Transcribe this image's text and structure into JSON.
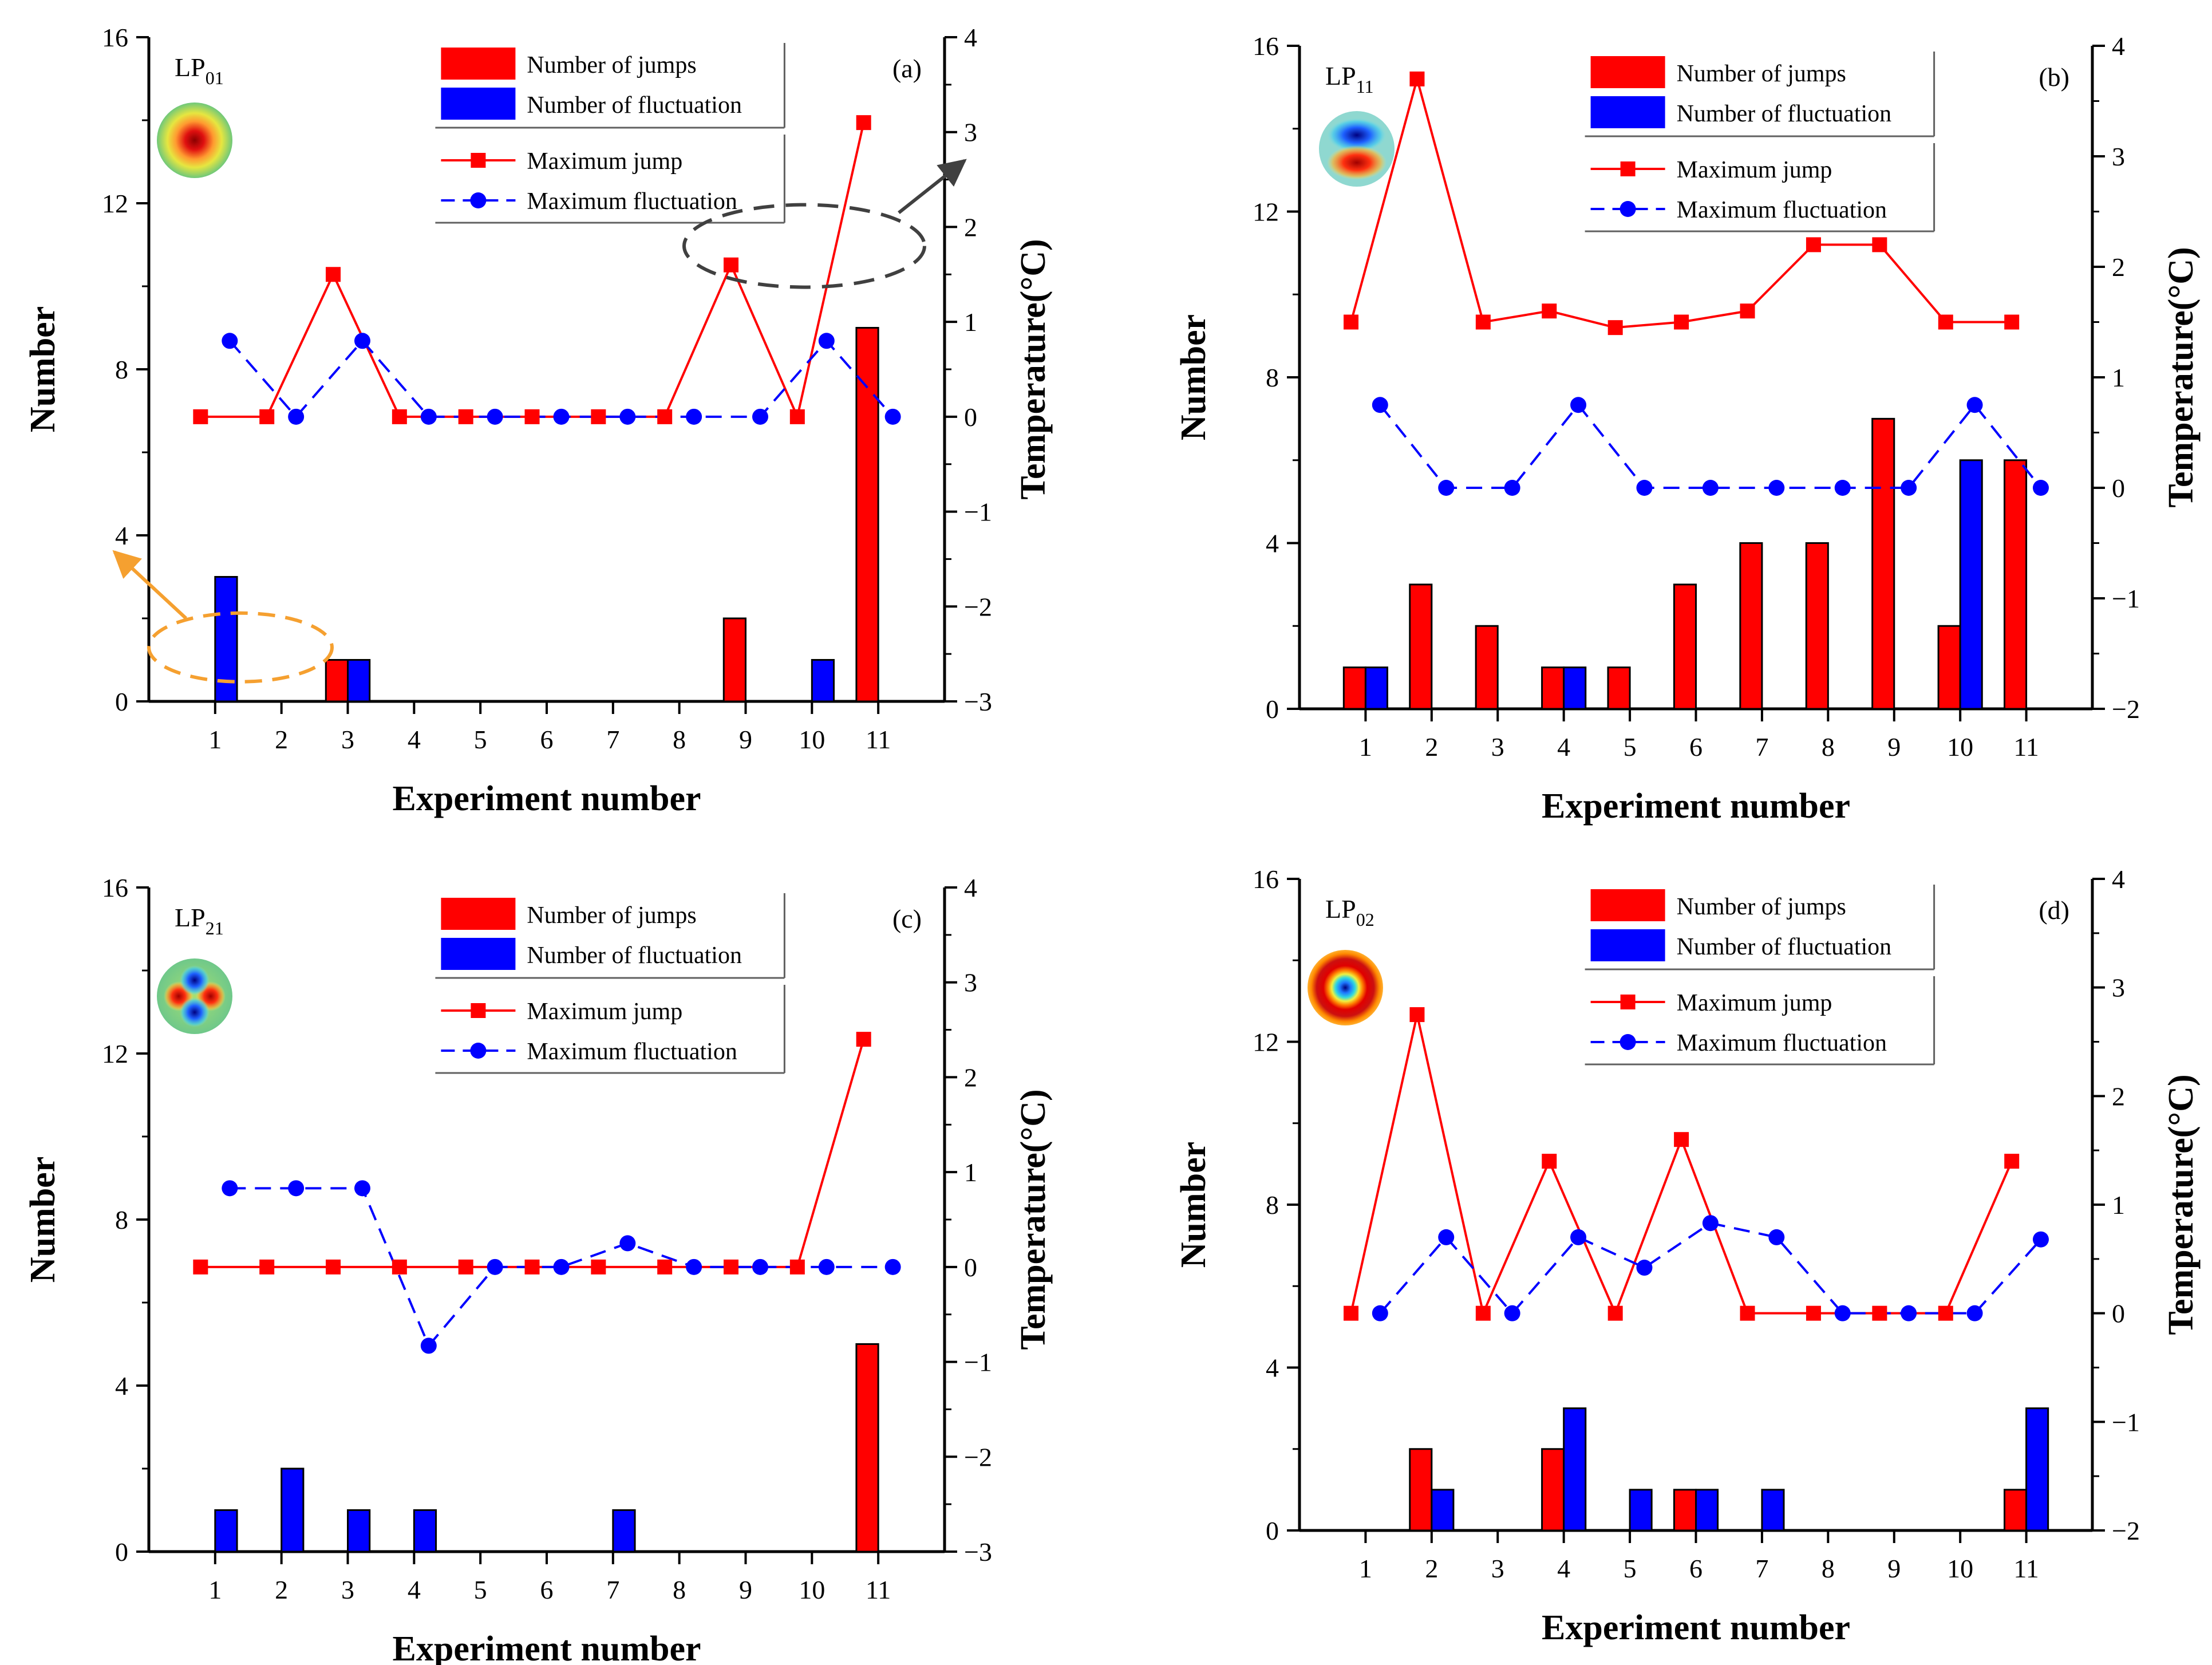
{
  "colors": {
    "jumps": "#ff0000",
    "fluctuation": "#0000ff",
    "axis": "#000000",
    "annotation_gray": "#404040",
    "annotation_orange": "#f5a030"
  },
  "icons": [
    "lp01-mode-profile",
    "lp11-mode-profile",
    "lp21-mode-profile",
    "lp02-mode-profile"
  ],
  "chart_data": [
    {
      "type": "bar",
      "panel": "(a)",
      "mode": "LP",
      "mode_sub": "01",
      "mode_profile": "lp01",
      "xlabel": "Experiment number",
      "ylabel": "Number",
      "y2label": "Temperature(°C)",
      "categories": [
        "1",
        "2",
        "3",
        "4",
        "5",
        "6",
        "7",
        "8",
        "9",
        "10",
        "11"
      ],
      "ylim": [
        0,
        16
      ],
      "yticks": [
        "0",
        "4",
        "8",
        "12",
        "16"
      ],
      "y2lim": [
        -3,
        4
      ],
      "y2ticks": [
        "−3",
        "−2",
        "−1",
        "0",
        "1",
        "2",
        "3",
        "4"
      ],
      "legend": [
        "Number of jumps",
        "Number of fluctuation",
        "Maximum jump",
        "Maximum fluctuation"
      ],
      "legend_position": "top-right",
      "series": [
        {
          "name": "Number of jumps",
          "kind": "bar",
          "axis": "left",
          "values": [
            0,
            0,
            1,
            0,
            0,
            0,
            0,
            0,
            2,
            0,
            9
          ]
        },
        {
          "name": "Number of fluctuation",
          "kind": "bar",
          "axis": "left",
          "values": [
            3,
            0,
            1,
            0,
            0,
            0,
            0,
            0,
            0,
            1,
            0
          ]
        },
        {
          "name": "Maximum jump",
          "kind": "line",
          "axis": "right",
          "values": [
            0,
            0,
            1.5,
            0,
            0,
            0,
            0,
            0,
            1.6,
            0,
            3.1
          ]
        },
        {
          "name": "Maximum fluctuation",
          "kind": "line",
          "axis": "right",
          "values": [
            0.8,
            0,
            0.8,
            0,
            0,
            0,
            0,
            0,
            0,
            0.8,
            0
          ]
        }
      ],
      "annotations": [
        {
          "shape": "dashed-ellipse-arrow",
          "color": "orange",
          "target": "left axis"
        },
        {
          "shape": "dashed-ellipse-arrow",
          "color": "gray",
          "target": "right axis"
        }
      ]
    },
    {
      "type": "bar",
      "panel": "(b)",
      "mode": "LP",
      "mode_sub": "11",
      "mode_profile": "lp11",
      "xlabel": "Experiment number",
      "ylabel": "Number",
      "y2label": "Temperature(°C)",
      "categories": [
        "1",
        "2",
        "3",
        "4",
        "5",
        "6",
        "7",
        "8",
        "9",
        "10",
        "11"
      ],
      "ylim": [
        0,
        16
      ],
      "yticks": [
        "0",
        "4",
        "8",
        "12",
        "16"
      ],
      "y2lim": [
        -2,
        4
      ],
      "y2ticks": [
        "−2",
        "−1",
        "0",
        "1",
        "2",
        "3",
        "4"
      ],
      "legend": [
        "Number of jumps",
        "Number of fluctuation",
        "Maximum jump",
        "Maximum fluctuation"
      ],
      "legend_position": "top-right",
      "series": [
        {
          "name": "Number of jumps",
          "kind": "bar",
          "axis": "left",
          "values": [
            1,
            3,
            2,
            1,
            1,
            3,
            4,
            4,
            7,
            2,
            6
          ]
        },
        {
          "name": "Number of fluctuation",
          "kind": "bar",
          "axis": "left",
          "values": [
            1,
            0,
            0,
            1,
            0,
            0,
            0,
            0,
            0,
            6,
            0
          ]
        },
        {
          "name": "Maximum jump",
          "kind": "line",
          "axis": "right",
          "values": [
            1.5,
            3.7,
            1.5,
            1.6,
            1.45,
            1.5,
            1.6,
            2.2,
            2.2,
            1.5,
            1.5
          ]
        },
        {
          "name": "Maximum fluctuation",
          "kind": "line",
          "axis": "right",
          "values": [
            0.75,
            0,
            0,
            0.75,
            0,
            0,
            0,
            0,
            0,
            0.75,
            0
          ]
        }
      ]
    },
    {
      "type": "bar",
      "panel": "(c)",
      "mode": "LP",
      "mode_sub": "21",
      "mode_profile": "lp21",
      "xlabel": "Experiment number",
      "ylabel": "Number",
      "y2label": "Temperature(°C)",
      "categories": [
        "1",
        "2",
        "3",
        "4",
        "5",
        "6",
        "7",
        "8",
        "9",
        "10",
        "11"
      ],
      "ylim": [
        0,
        16
      ],
      "yticks": [
        "0",
        "4",
        "8",
        "12",
        "16"
      ],
      "y2lim": [
        -3,
        4
      ],
      "y2ticks": [
        "−3",
        "−2",
        "−1",
        "0",
        "1",
        "2",
        "3",
        "4"
      ],
      "legend": [
        "Number of jumps",
        "Number of fluctuation",
        "Maximum jump",
        "Maximum fluctuation"
      ],
      "legend_position": "top-right",
      "series": [
        {
          "name": "Number of jumps",
          "kind": "bar",
          "axis": "left",
          "values": [
            0,
            0,
            0,
            0,
            0,
            0,
            0,
            0,
            0,
            0,
            5
          ]
        },
        {
          "name": "Number of fluctuation",
          "kind": "bar",
          "axis": "left",
          "values": [
            1,
            2,
            1,
            1,
            0,
            0,
            1,
            0,
            0,
            0,
            0
          ]
        },
        {
          "name": "Maximum jump",
          "kind": "line",
          "axis": "right",
          "values": [
            0,
            0,
            0,
            0,
            0,
            0,
            0,
            0,
            0,
            0,
            2.4
          ]
        },
        {
          "name": "Maximum fluctuation",
          "kind": "line",
          "axis": "right",
          "values": [
            0.83,
            0.83,
            0.83,
            -0.83,
            0,
            0,
            0.25,
            0,
            0,
            0,
            0
          ]
        }
      ]
    },
    {
      "type": "bar",
      "panel": "(d)",
      "mode": "LP",
      "mode_sub": "02",
      "mode_profile": "lp02",
      "xlabel": "Experiment number",
      "ylabel": "Number",
      "y2label": "Temperature(°C)",
      "categories": [
        "1",
        "2",
        "3",
        "4",
        "5",
        "6",
        "7",
        "8",
        "9",
        "10",
        "11"
      ],
      "ylim": [
        0,
        16
      ],
      "yticks": [
        "0",
        "4",
        "8",
        "12",
        "16"
      ],
      "y2lim": [
        -2,
        4
      ],
      "y2ticks": [
        "−2",
        "−1",
        "0",
        "1",
        "2",
        "3",
        "4"
      ],
      "legend": [
        "Number of jumps",
        "Number of fluctuation",
        "Maximum jump",
        "Maximum fluctuation"
      ],
      "legend_position": "top-right",
      "series": [
        {
          "name": "Number of jumps",
          "kind": "bar",
          "axis": "left",
          "values": [
            0,
            2,
            0,
            2,
            0,
            1,
            0,
            0,
            0,
            0,
            1
          ]
        },
        {
          "name": "Number of fluctuation",
          "kind": "bar",
          "axis": "left",
          "values": [
            0,
            1,
            0,
            3,
            1,
            1,
            1,
            0,
            0,
            0,
            3
          ]
        },
        {
          "name": "Maximum jump",
          "kind": "line",
          "axis": "right",
          "values": [
            0,
            2.75,
            0,
            1.4,
            0,
            1.6,
            0,
            0,
            0,
            0,
            1.4
          ]
        },
        {
          "name": "Maximum fluctuation",
          "kind": "line",
          "axis": "right",
          "values": [
            0,
            0.7,
            0,
            0.7,
            0.42,
            0.83,
            0.7,
            0,
            0,
            0,
            0.68
          ]
        }
      ]
    }
  ]
}
